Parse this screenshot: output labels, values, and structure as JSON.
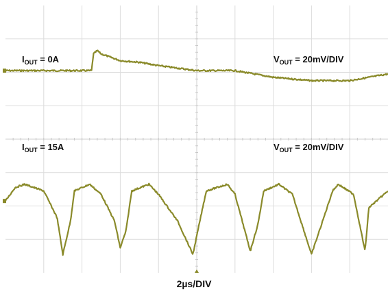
{
  "chart_data": {
    "type": "line",
    "grid": true,
    "x_divisions": 10,
    "y_divisions": 8,
    "xlabel": "2µs/DIV",
    "time_per_div_us": 2,
    "trace_color": "#8a8a2a",
    "grid_color": "#dcdcdc",
    "channels": [
      {
        "current_label": {
          "main": "I",
          "sub": "OUT",
          "rest": " = 0A"
        },
        "scale_label": {
          "main": "V",
          "sub": "OUT",
          "rest": " = 20mV/DIV"
        },
        "ref_div": 1.95,
        "unit": "mV",
        "x": [
          0,
          2,
          3.5,
          4.5,
          4.6,
          4.8,
          5,
          6,
          7,
          7.5,
          8,
          10,
          12,
          14,
          16,
          18,
          20
        ],
        "y": [
          0,
          0,
          0,
          0,
          10,
          12,
          10,
          6,
          5,
          4,
          3,
          0,
          0,
          -4,
          -6,
          -6,
          -2
        ]
      },
      {
        "current_label": {
          "main": "I",
          "sub": "OUT",
          "rest": " = 15A"
        },
        "scale_label": {
          "main": "V",
          "sub": "OUT",
          "rest": " = 20mV/DIV"
        },
        "ref_div": 5.85,
        "unit": "mV",
        "x": [
          0,
          0.5,
          1,
          2,
          2.7,
          3,
          3.4,
          3.6,
          4.4,
          5,
          5.7,
          6,
          6.3,
          6.6,
          7.5,
          8,
          9,
          9.8,
          10.2,
          10.5,
          11.6,
          12,
          12.8,
          13.2,
          13.5,
          14.3,
          15,
          16,
          16.7,
          17.1,
          17.4,
          18.2,
          18.8,
          19,
          20
        ],
        "y": [
          0,
          8,
          10,
          6,
          -10,
          -32,
          -12,
          6,
          10,
          4,
          -12,
          -28,
          -18,
          6,
          10,
          4,
          -12,
          -32,
          -10,
          6,
          10,
          4,
          -30,
          -14,
          6,
          10,
          4,
          -32,
          -8,
          6,
          10,
          4,
          -30,
          -4,
          6
        ]
      }
    ]
  }
}
